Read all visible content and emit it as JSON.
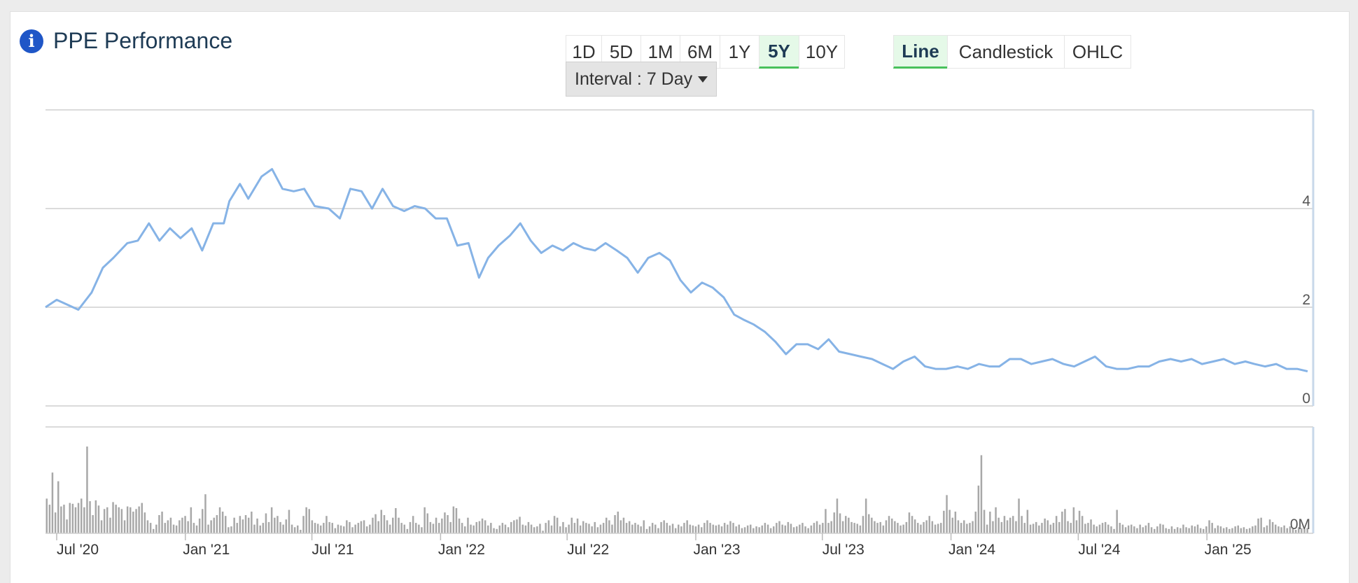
{
  "header": {
    "title": "PPE Performance",
    "info_icon": "info-icon"
  },
  "range_buttons": [
    {
      "label": "1D",
      "active": false
    },
    {
      "label": "5D",
      "active": false
    },
    {
      "label": "1M",
      "active": false
    },
    {
      "label": "6M",
      "active": false
    },
    {
      "label": "1Y",
      "active": false
    },
    {
      "label": "5Y",
      "active": true
    },
    {
      "label": "10Y",
      "active": false
    }
  ],
  "chart_type_buttons": [
    {
      "label": "Line",
      "active": true
    },
    {
      "label": "Candlestick",
      "active": false
    },
    {
      "label": "OHLC",
      "active": false
    }
  ],
  "interval": {
    "label": "Interval : 7 Day"
  },
  "colors": {
    "line": "#86b3e6",
    "volume": "#a8a8a8",
    "accent": "#48c15b",
    "title": "#1e3b55"
  },
  "chart_data": [
    {
      "type": "line",
      "y_ticks": [
        0,
        2,
        4
      ],
      "ylim": [
        0,
        6
      ],
      "x_labels": [
        "Jul '20",
        "Jan '21",
        "Jul '21",
        "Jan '22",
        "Jul '22",
        "Jan '23",
        "Jul '23",
        "Jan '24",
        "Jul '24",
        "Jan '25"
      ],
      "xlim": [
        "2020-06-15",
        "2025-06-02"
      ],
      "grid": true,
      "series": [
        {
          "points": [
            [
              "2020-06-15",
              2.0
            ],
            [
              "2020-07-01",
              2.15
            ],
            [
              "2020-08-01",
              1.95
            ],
            [
              "2020-08-20",
              2.3
            ],
            [
              "2020-09-05",
              2.8
            ],
            [
              "2020-09-20",
              3.0
            ],
            [
              "2020-10-10",
              3.3
            ],
            [
              "2020-10-25",
              3.35
            ],
            [
              "2020-11-10",
              3.7
            ],
            [
              "2020-11-25",
              3.35
            ],
            [
              "2020-12-10",
              3.6
            ],
            [
              "2020-12-25",
              3.4
            ],
            [
              "2021-01-10",
              3.6
            ],
            [
              "2021-01-25",
              3.15
            ],
            [
              "2021-02-10",
              3.7
            ],
            [
              "2021-02-25",
              3.7
            ],
            [
              "2021-03-05",
              4.15
            ],
            [
              "2021-03-20",
              4.5
            ],
            [
              "2021-04-01",
              4.2
            ],
            [
              "2021-04-20",
              4.65
            ],
            [
              "2021-05-05",
              4.8
            ],
            [
              "2021-05-20",
              4.4
            ],
            [
              "2021-06-05",
              4.35
            ],
            [
              "2021-06-20",
              4.4
            ],
            [
              "2021-07-05",
              4.05
            ],
            [
              "2021-07-25",
              4.0
            ],
            [
              "2021-08-10",
              3.8
            ],
            [
              "2021-08-25",
              4.4
            ],
            [
              "2021-09-10",
              4.35
            ],
            [
              "2021-09-25",
              4.0
            ],
            [
              "2021-10-10",
              4.4
            ],
            [
              "2021-10-25",
              4.05
            ],
            [
              "2021-11-10",
              3.95
            ],
            [
              "2021-11-25",
              4.05
            ],
            [
              "2021-12-10",
              4.0
            ],
            [
              "2021-12-25",
              3.8
            ],
            [
              "2022-01-10",
              3.8
            ],
            [
              "2022-01-25",
              3.25
            ],
            [
              "2022-02-10",
              3.3
            ],
            [
              "2022-02-25",
              2.6
            ],
            [
              "2022-03-10",
              3.0
            ],
            [
              "2022-03-25",
              3.25
            ],
            [
              "2022-04-10",
              3.45
            ],
            [
              "2022-04-25",
              3.7
            ],
            [
              "2022-05-10",
              3.35
            ],
            [
              "2022-05-25",
              3.1
            ],
            [
              "2022-06-10",
              3.25
            ],
            [
              "2022-06-25",
              3.15
            ],
            [
              "2022-07-10",
              3.3
            ],
            [
              "2022-07-25",
              3.2
            ],
            [
              "2022-08-10",
              3.15
            ],
            [
              "2022-08-25",
              3.3
            ],
            [
              "2022-09-10",
              3.15
            ],
            [
              "2022-09-25",
              3.0
            ],
            [
              "2022-10-10",
              2.7
            ],
            [
              "2022-10-25",
              3.0
            ],
            [
              "2022-11-10",
              3.1
            ],
            [
              "2022-11-25",
              2.95
            ],
            [
              "2022-12-10",
              2.55
            ],
            [
              "2022-12-25",
              2.3
            ],
            [
              "2023-01-10",
              2.5
            ],
            [
              "2023-01-25",
              2.4
            ],
            [
              "2023-02-10",
              2.2
            ],
            [
              "2023-02-25",
              1.85
            ],
            [
              "2023-03-10",
              1.75
            ],
            [
              "2023-03-25",
              1.65
            ],
            [
              "2023-04-10",
              1.5
            ],
            [
              "2023-04-25",
              1.3
            ],
            [
              "2023-05-10",
              1.05
            ],
            [
              "2023-05-25",
              1.25
            ],
            [
              "2023-06-10",
              1.25
            ],
            [
              "2023-06-25",
              1.15
            ],
            [
              "2023-07-10",
              1.35
            ],
            [
              "2023-07-25",
              1.1
            ],
            [
              "2023-08-10",
              1.05
            ],
            [
              "2023-08-25",
              1.0
            ],
            [
              "2023-09-10",
              0.95
            ],
            [
              "2023-09-25",
              0.85
            ],
            [
              "2023-10-10",
              0.75
            ],
            [
              "2023-10-25",
              0.9
            ],
            [
              "2023-11-10",
              1.0
            ],
            [
              "2023-11-25",
              0.8
            ],
            [
              "2023-12-10",
              0.75
            ],
            [
              "2023-12-25",
              0.75
            ],
            [
              "2024-01-10",
              0.8
            ],
            [
              "2024-01-25",
              0.75
            ],
            [
              "2024-02-10",
              0.85
            ],
            [
              "2024-02-25",
              0.8
            ],
            [
              "2024-03-10",
              0.8
            ],
            [
              "2024-03-25",
              0.95
            ],
            [
              "2024-04-10",
              0.95
            ],
            [
              "2024-04-25",
              0.85
            ],
            [
              "2024-05-10",
              0.9
            ],
            [
              "2024-05-25",
              0.95
            ],
            [
              "2024-06-10",
              0.85
            ],
            [
              "2024-06-25",
              0.8
            ],
            [
              "2024-07-10",
              0.9
            ],
            [
              "2024-07-25",
              1.0
            ],
            [
              "2024-08-10",
              0.8
            ],
            [
              "2024-08-25",
              0.75
            ],
            [
              "2024-09-10",
              0.75
            ],
            [
              "2024-09-25",
              0.8
            ],
            [
              "2024-10-10",
              0.8
            ],
            [
              "2024-10-25",
              0.9
            ],
            [
              "2024-11-10",
              0.95
            ],
            [
              "2024-11-25",
              0.9
            ],
            [
              "2024-12-10",
              0.95
            ],
            [
              "2024-12-25",
              0.85
            ],
            [
              "2025-01-10",
              0.9
            ],
            [
              "2025-01-25",
              0.95
            ],
            [
              "2025-02-10",
              0.85
            ],
            [
              "2025-02-25",
              0.9
            ],
            [
              "2025-03-10",
              0.85
            ],
            [
              "2025-03-25",
              0.8
            ],
            [
              "2025-04-10",
              0.85
            ],
            [
              "2025-04-25",
              0.75
            ],
            [
              "2025-05-10",
              0.75
            ],
            [
              "2025-05-25",
              0.7
            ]
          ]
        }
      ]
    },
    {
      "type": "bar",
      "y_tick_label": "0M",
      "ylim": [
        0,
        1
      ],
      "values": [
        0.4,
        0.33,
        0.7,
        0.24,
        0.6,
        0.31,
        0.33,
        0.16,
        0.35,
        0.34,
        0.3,
        0.35,
        0.4,
        0.3,
        1.0,
        0.37,
        0.21,
        0.38,
        0.32,
        0.15,
        0.28,
        0.3,
        0.18,
        0.36,
        0.33,
        0.3,
        0.28,
        0.15,
        0.31,
        0.3,
        0.25,
        0.28,
        0.31,
        0.35,
        0.24,
        0.15,
        0.12,
        0.05,
        0.1,
        0.21,
        0.25,
        0.12,
        0.15,
        0.18,
        0.1,
        0.09,
        0.15,
        0.18,
        0.2,
        0.14,
        0.3,
        0.12,
        0.09,
        0.17,
        0.28,
        0.45,
        0.1,
        0.15,
        0.18,
        0.21,
        0.3,
        0.25,
        0.2,
        0.07,
        0.08,
        0.18,
        0.12,
        0.2,
        0.16,
        0.21,
        0.18,
        0.25,
        0.1,
        0.17,
        0.09,
        0.12,
        0.23,
        0.13,
        0.3,
        0.18,
        0.2,
        0.13,
        0.1,
        0.16,
        0.27,
        0.1,
        0.07,
        0.09,
        0.04,
        0.2,
        0.3,
        0.28,
        0.15,
        0.12,
        0.11,
        0.09,
        0.12,
        0.2,
        0.13,
        0.12,
        0.06,
        0.1,
        0.09,
        0.08,
        0.15,
        0.13,
        0.07,
        0.1,
        0.12,
        0.14,
        0.15,
        0.08,
        0.1,
        0.18,
        0.22,
        0.14,
        0.27,
        0.21,
        0.15,
        0.1,
        0.18,
        0.29,
        0.18,
        0.12,
        0.1,
        0.05,
        0.13,
        0.2,
        0.12,
        0.1,
        0.07,
        0.3,
        0.23,
        0.13,
        0.11,
        0.18,
        0.12,
        0.17,
        0.24,
        0.21,
        0.13,
        0.31,
        0.29,
        0.17,
        0.12,
        0.08,
        0.18,
        0.1,
        0.09,
        0.13,
        0.14,
        0.17,
        0.15,
        0.09,
        0.12,
        0.06,
        0.05,
        0.09,
        0.12,
        0.1,
        0.07,
        0.13,
        0.15,
        0.16,
        0.19,
        0.1,
        0.09,
        0.13,
        0.1,
        0.07,
        0.08,
        0.11,
        0.03,
        0.12,
        0.15,
        0.09,
        0.2,
        0.18,
        0.08,
        0.13,
        0.07,
        0.1,
        0.18,
        0.12,
        0.17,
        0.09,
        0.14,
        0.12,
        0.11,
        0.08,
        0.13,
        0.07,
        0.1,
        0.12,
        0.18,
        0.15,
        0.1,
        0.21,
        0.25,
        0.15,
        0.18,
        0.12,
        0.14,
        0.1,
        0.12,
        0.1,
        0.08,
        0.15,
        0.05,
        0.08,
        0.12,
        0.1,
        0.06,
        0.13,
        0.15,
        0.12,
        0.09,
        0.11,
        0.06,
        0.1,
        0.08,
        0.12,
        0.15,
        0.1,
        0.09,
        0.08,
        0.1,
        0.07,
        0.12,
        0.15,
        0.12,
        0.1,
        0.09,
        0.1,
        0.08,
        0.12,
        0.1,
        0.14,
        0.12,
        0.08,
        0.1,
        0.06,
        0.07,
        0.09,
        0.1,
        0.06,
        0.08,
        0.07,
        0.09,
        0.12,
        0.1,
        0.06,
        0.08,
        0.12,
        0.14,
        0.1,
        0.09,
        0.13,
        0.11,
        0.07,
        0.08,
        0.1,
        0.12,
        0.08,
        0.06,
        0.09,
        0.12,
        0.14,
        0.1,
        0.12,
        0.28,
        0.12,
        0.14,
        0.24,
        0.4,
        0.23,
        0.14,
        0.2,
        0.18,
        0.13,
        0.12,
        0.11,
        0.09,
        0.2,
        0.4,
        0.22,
        0.18,
        0.14,
        0.12,
        0.13,
        0.09,
        0.15,
        0.2,
        0.17,
        0.14,
        0.12,
        0.09,
        0.1,
        0.13,
        0.24,
        0.2,
        0.16,
        0.12,
        0.1,
        0.13,
        0.15,
        0.2,
        0.14,
        0.1,
        0.11,
        0.12,
        0.26,
        0.44,
        0.27,
        0.18,
        0.25,
        0.15,
        0.12,
        0.15,
        0.11,
        0.12,
        0.14,
        0.25,
        0.55,
        0.9,
        0.27,
        0.1,
        0.25,
        0.14,
        0.3,
        0.18,
        0.13,
        0.2,
        0.15,
        0.18,
        0.2,
        0.14,
        0.4,
        0.2,
        0.12,
        0.27,
        0.1,
        0.11,
        0.13,
        0.09,
        0.12,
        0.17,
        0.15,
        0.1,
        0.12,
        0.2,
        0.13,
        0.25,
        0.28,
        0.14,
        0.12,
        0.3,
        0.15,
        0.26,
        0.2,
        0.11,
        0.12,
        0.16,
        0.1,
        0.08,
        0.1,
        0.12,
        0.13,
        0.1,
        0.08,
        0.05,
        0.27,
        0.12,
        0.1,
        0.07,
        0.09,
        0.1,
        0.08,
        0.06,
        0.1,
        0.07,
        0.09,
        0.12,
        0.07,
        0.05,
        0.08,
        0.11,
        0.1,
        0.06,
        0.05,
        0.08,
        0.05,
        0.07,
        0.06,
        0.1,
        0.07,
        0.06,
        0.09,
        0.08,
        0.1,
        0.06,
        0.05,
        0.08,
        0.15,
        0.12,
        0.06,
        0.09,
        0.08,
        0.06,
        0.07,
        0.05,
        0.06,
        0.08,
        0.09,
        0.06,
        0.07,
        0.05,
        0.06,
        0.08,
        0.09,
        0.17,
        0.18,
        0.07,
        0.09,
        0.16,
        0.13,
        0.1,
        0.08,
        0.07,
        0.09,
        0.06,
        0.08,
        0.05,
        0.04,
        0.07,
        0.06,
        0.05,
        0.06
      ]
    }
  ]
}
